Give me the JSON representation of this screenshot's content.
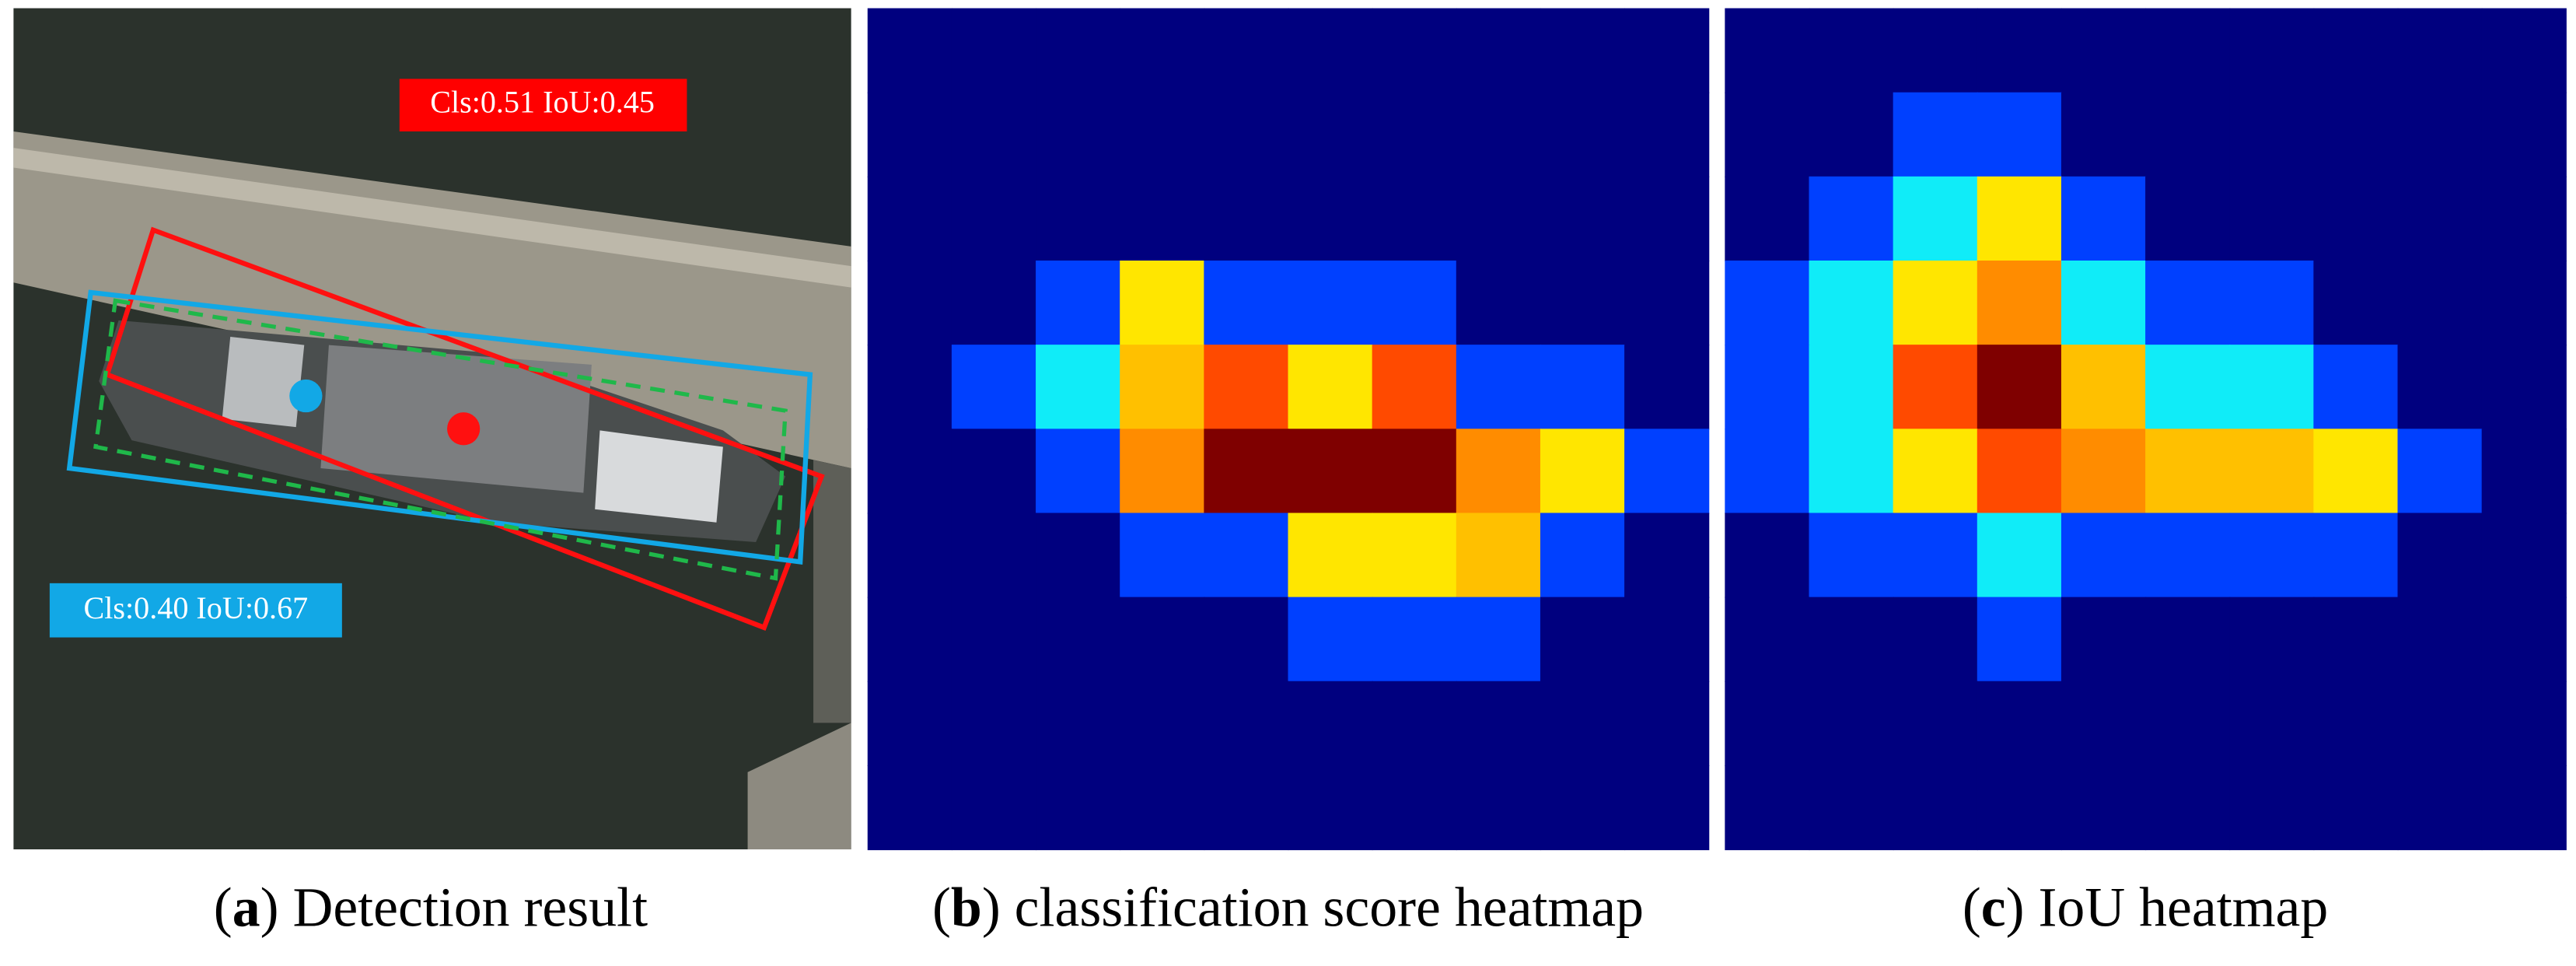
{
  "panels": [
    {
      "labels": [
        {
          "text": "Cls:0.51  IoU:0.45",
          "color": "#ff0000"
        },
        {
          "text": "Cls:0.40  IoU:0.67",
          "color": "#12a8e6"
        }
      ],
      "caption": {
        "parts": [
          "(",
          "a",
          ") Detection result"
        ]
      }
    },
    {
      "caption": {
        "parts": [
          "(",
          "b",
          ") classification score heatmap"
        ]
      },
      "cells": [
        [
          0,
          0,
          0,
          0,
          0,
          0,
          0,
          0,
          0,
          0
        ],
        [
          0,
          0,
          0,
          0,
          0,
          0,
          0,
          0,
          0,
          0
        ],
        [
          0,
          0,
          0,
          0,
          0,
          0,
          0,
          0,
          0,
          0
        ],
        [
          0,
          0,
          1,
          3,
          1,
          1,
          1,
          0,
          0,
          0
        ],
        [
          0,
          1,
          2,
          4,
          6,
          3,
          6,
          1,
          1,
          0
        ],
        [
          0,
          0,
          1,
          5,
          7,
          7,
          7,
          5,
          3,
          1
        ],
        [
          0,
          0,
          0,
          1,
          1,
          3,
          3,
          4,
          1,
          0
        ],
        [
          0,
          0,
          0,
          0,
          0,
          1,
          1,
          1,
          0,
          0
        ],
        [
          0,
          0,
          0,
          0,
          0,
          0,
          0,
          0,
          0,
          0
        ],
        [
          0,
          0,
          0,
          0,
          0,
          0,
          0,
          0,
          0,
          0
        ]
      ]
    },
    {
      "caption": {
        "parts": [
          "(",
          "c",
          ") IoU heatmap"
        ]
      },
      "cells": [
        [
          0,
          0,
          0,
          0,
          0,
          0,
          0,
          0,
          0,
          0
        ],
        [
          0,
          0,
          1,
          1,
          0,
          0,
          0,
          0,
          0,
          0
        ],
        [
          0,
          1,
          2,
          3,
          1,
          0,
          0,
          0,
          0,
          0
        ],
        [
          1,
          2,
          3,
          5,
          2,
          1,
          1,
          0,
          0,
          0
        ],
        [
          1,
          2,
          6,
          7,
          4,
          2,
          2,
          1,
          0,
          0
        ],
        [
          1,
          2,
          3,
          6,
          5,
          4,
          4,
          3,
          1,
          0
        ],
        [
          0,
          1,
          1,
          2,
          1,
          1,
          1,
          1,
          0,
          0
        ],
        [
          0,
          0,
          0,
          1,
          0,
          0,
          0,
          0,
          0,
          0
        ],
        [
          0,
          0,
          0,
          0,
          0,
          0,
          0,
          0,
          0,
          0
        ],
        [
          0,
          0,
          0,
          0,
          0,
          0,
          0,
          0,
          0,
          0
        ]
      ]
    }
  ],
  "palette": [
    "#00007f",
    "#0040ff",
    "#10ecf8",
    "#ffe600",
    "#ffc000",
    "#ff8c00",
    "#ff4a00",
    "#7f0000"
  ]
}
